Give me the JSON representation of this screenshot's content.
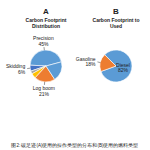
{
  "chart_data": [
    {
      "type": "pie",
      "title": "Carbon Footprint\nDistribution",
      "annotations": [
        "A"
      ],
      "categories": [
        "Precision",
        "Skidding",
        null,
        null,
        "Log boom",
        null
      ],
      "values": [
        45,
        6,
        3,
        5,
        21,
        20
      ],
      "value_labels": [
        "45%",
        "6%",
        null,
        null,
        "21%",
        null
      ],
      "colors": [
        "#5B9BD5",
        "#4472C4",
        "#A5A5A5",
        "#FFC000",
        "#ED7D31",
        "#5B9BD5"
      ],
      "data_labels": true
    },
    {
      "type": "pie",
      "title": "Carbon Footprint to\nUsed",
      "annotations": [
        "B"
      ],
      "categories": [
        "Diesel",
        "Gasoline"
      ],
      "values": [
        82,
        18
      ],
      "value_labels": [
        "82%",
        "18%"
      ],
      "colors": [
        "#5B9BD5",
        "#ED7D31"
      ],
      "data_labels": true
    }
  ],
  "caption": "图2: 碳足迹(A)使用的操作类型的分布和(B)使用的燃料类型"
}
